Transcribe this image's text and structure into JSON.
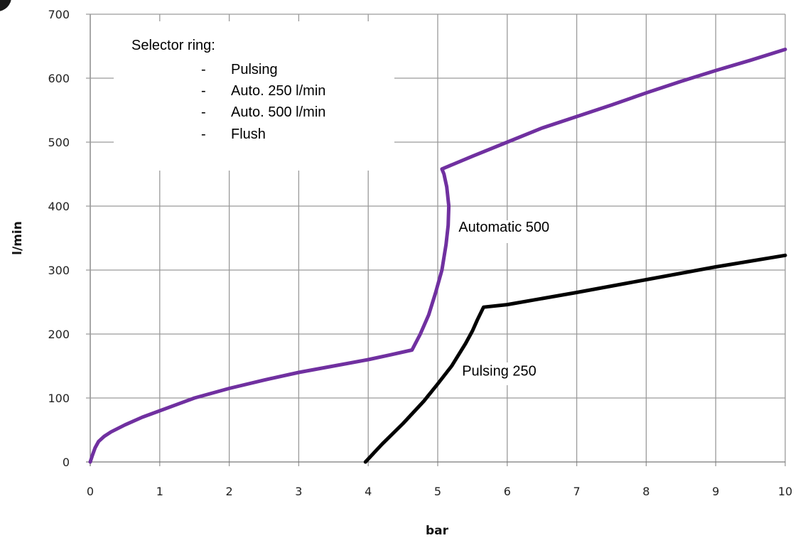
{
  "chart_data": {
    "type": "line",
    "title": "",
    "xlabel": "bar",
    "ylabel": "l/min",
    "xlim": [
      0,
      10
    ],
    "ylim": [
      0,
      700
    ],
    "x_ticks": [
      0,
      1,
      2,
      3,
      4,
      5,
      6,
      7,
      8,
      9,
      10
    ],
    "y_ticks": [
      0,
      100,
      200,
      300,
      400,
      500,
      600,
      700
    ],
    "grid": true,
    "series": [
      {
        "name": "Automatic 500",
        "color": "#7030a0",
        "points": [
          [
            0.0,
            0
          ],
          [
            0.03,
            10
          ],
          [
            0.07,
            22
          ],
          [
            0.12,
            32
          ],
          [
            0.2,
            40
          ],
          [
            0.3,
            47
          ],
          [
            0.5,
            58
          ],
          [
            0.75,
            70
          ],
          [
            1.0,
            80
          ],
          [
            1.5,
            100
          ],
          [
            2.0,
            115
          ],
          [
            2.5,
            128
          ],
          [
            3.0,
            140
          ],
          [
            3.5,
            150
          ],
          [
            4.0,
            160
          ],
          [
            4.3,
            167
          ],
          [
            4.63,
            175
          ],
          [
            4.75,
            200
          ],
          [
            4.87,
            230
          ],
          [
            4.97,
            265
          ],
          [
            5.06,
            300
          ],
          [
            5.12,
            340
          ],
          [
            5.15,
            370
          ],
          [
            5.16,
            400
          ],
          [
            5.13,
            430
          ],
          [
            5.09,
            450
          ],
          [
            5.06,
            458
          ],
          [
            5.5,
            478
          ],
          [
            6.0,
            500
          ],
          [
            6.5,
            522
          ],
          [
            7.0,
            540
          ],
          [
            7.5,
            558
          ],
          [
            8.0,
            577
          ],
          [
            8.5,
            595
          ],
          [
            9.0,
            612
          ],
          [
            9.5,
            628
          ],
          [
            10.0,
            645
          ]
        ]
      },
      {
        "name": "Pulsing 250",
        "color": "#000000",
        "points": [
          [
            3.96,
            0
          ],
          [
            4.2,
            28
          ],
          [
            4.5,
            60
          ],
          [
            4.8,
            95
          ],
          [
            5.0,
            122
          ],
          [
            5.2,
            150
          ],
          [
            5.4,
            185
          ],
          [
            5.5,
            205
          ],
          [
            5.57,
            222
          ],
          [
            5.66,
            242
          ],
          [
            6.0,
            246
          ],
          [
            7.0,
            265
          ],
          [
            8.0,
            285
          ],
          [
            9.0,
            305
          ],
          [
            10.0,
            323
          ]
        ]
      }
    ],
    "annotations": [
      {
        "text": "Automatic 500",
        "x": 5.3,
        "y": 360
      },
      {
        "text": "Pulsing 250",
        "x": 5.35,
        "y": 135
      }
    ],
    "selector_note": {
      "title": "Selector ring:",
      "dash": "-",
      "items": [
        "Pulsing",
        "Auto. 250 l/min",
        "Auto. 500 l/min",
        "Flush"
      ]
    }
  }
}
